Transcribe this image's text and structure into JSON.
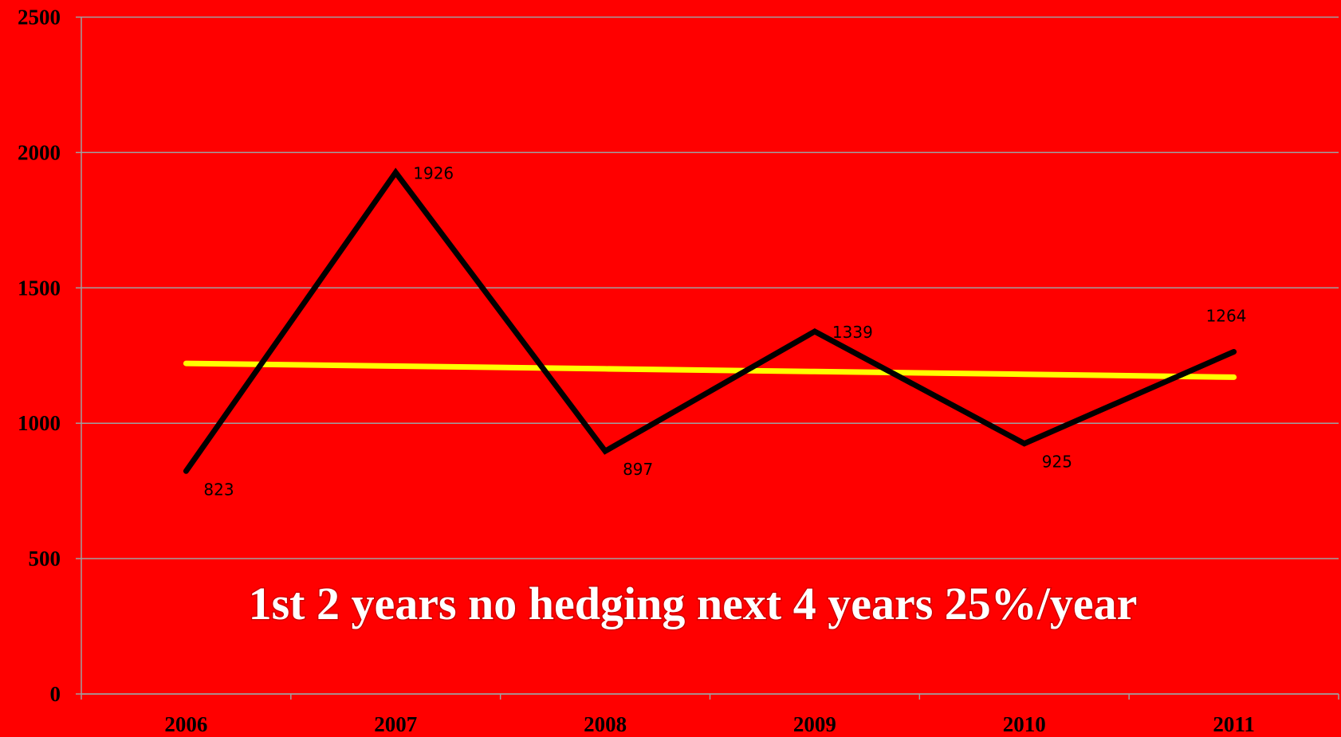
{
  "chart_data": {
    "type": "line",
    "annotation": "1st 2 years no hedging next 4 years 25%/year",
    "categories": [
      "2006",
      "2007",
      "2008",
      "2009",
      "2010",
      "2011"
    ],
    "series": [
      {
        "color": "#000000",
        "values": [
          823,
          1926,
          897,
          1339,
          925,
          1264
        ],
        "data_labels": true
      },
      {
        "color": "#ffff00",
        "values": [
          1221,
          1211,
          1201,
          1191,
          1181,
          1170
        ],
        "data_labels": false
      }
    ],
    "ylim": [
      0,
      2500
    ],
    "yticks": [
      0,
      500,
      1000,
      1500,
      2000,
      2500
    ],
    "grid": true,
    "background": "#ff0000"
  }
}
